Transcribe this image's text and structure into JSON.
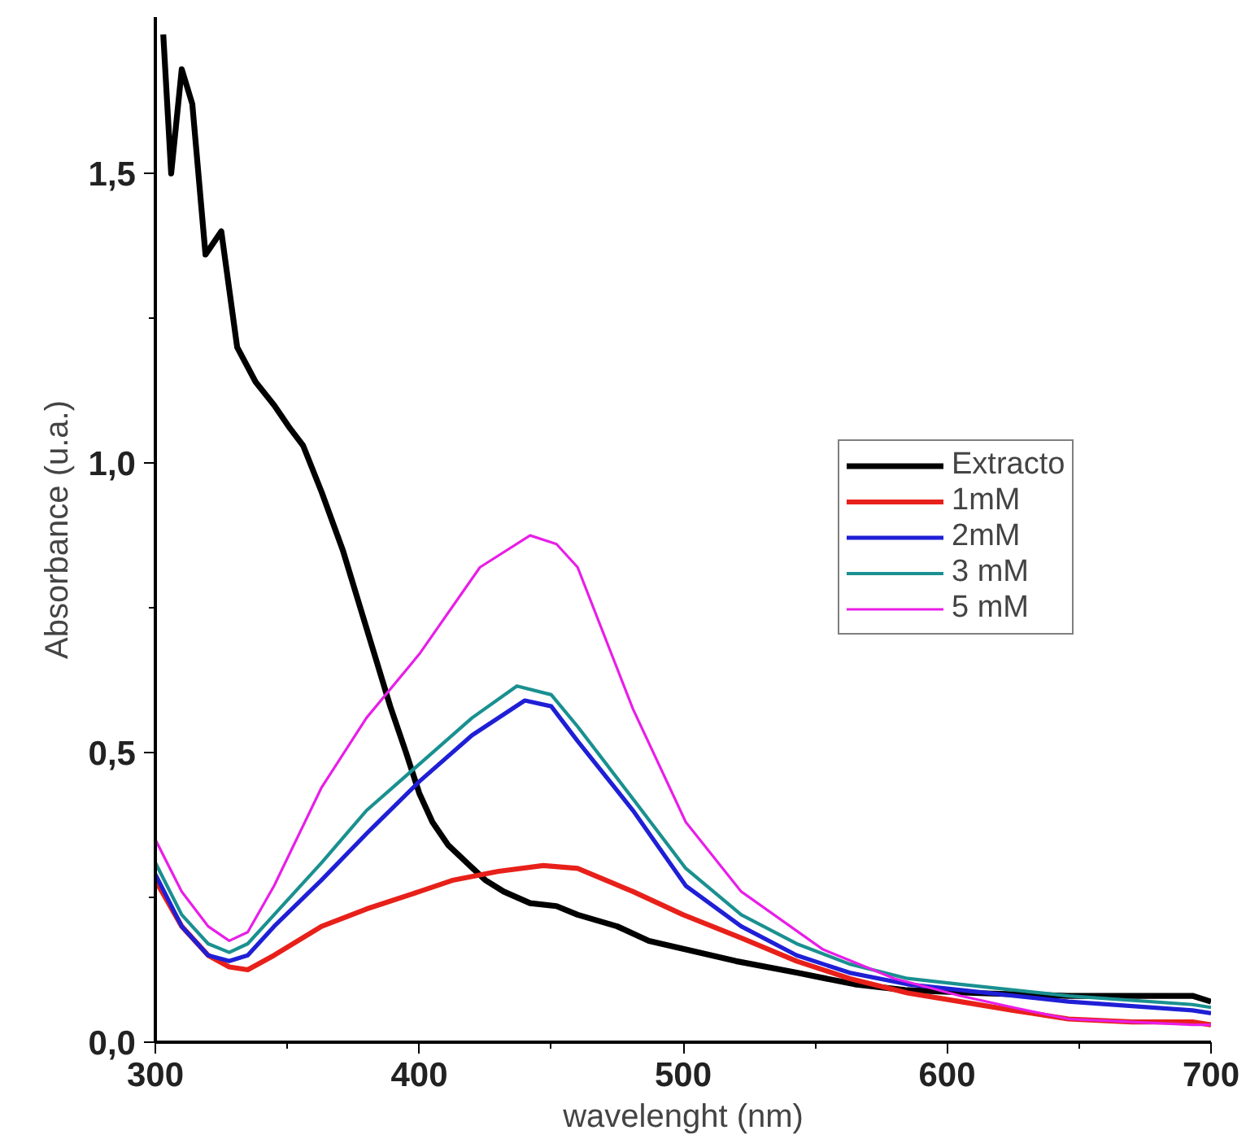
{
  "chart_data": {
    "type": "line",
    "xlabel": "wavelenght (nm)",
    "ylabel": "Absorbance (u.a.)",
    "xlim": [
      300,
      700
    ],
    "ylim": [
      0,
      1.77
    ],
    "xticks": [
      300,
      {
        "value": 350,
        "label": null
      },
      400,
      {
        "value": 450,
        "label": null
      },
      500,
      {
        "value": 550,
        "label": null
      },
      600,
      {
        "value": 650,
        "label": null
      },
      700
    ],
    "yticks": [
      {
        "value": 0,
        "label": "0,0"
      },
      {
        "value": 0.25,
        "label": null
      },
      {
        "value": 0.5,
        "label": "0,5"
      },
      {
        "value": 0.75,
        "label": null
      },
      {
        "value": 1.0,
        "label": "1,0"
      },
      {
        "value": 1.25,
        "label": null
      },
      {
        "value": 1.5,
        "label": "1,5"
      }
    ],
    "grid": false,
    "legend": "right",
    "marker": "none",
    "line_style": "solid",
    "series": [
      {
        "name": "Extracto",
        "color": "#000000",
        "x": [
          303,
          306,
          310,
          314,
          319,
          325,
          331,
          338,
          345,
          351,
          356,
          363,
          371,
          377,
          383,
          389,
          395,
          400,
          405,
          411,
          418,
          425,
          432,
          442,
          452,
          460,
          475,
          487,
          501,
          520,
          543,
          565,
          584,
          610,
          646,
          670,
          693,
          700
        ],
        "values": [
          1.74,
          1.5,
          1.68,
          1.62,
          1.36,
          1.4,
          1.2,
          1.14,
          1.1,
          1.06,
          1.03,
          0.95,
          0.85,
          0.76,
          0.67,
          0.58,
          0.5,
          0.43,
          0.38,
          0.34,
          0.31,
          0.28,
          0.26,
          0.24,
          0.235,
          0.22,
          0.2,
          0.175,
          0.16,
          0.14,
          0.12,
          0.1,
          0.09,
          0.085,
          0.08,
          0.08,
          0.08,
          0.07
        ]
      },
      {
        "name": "1mM",
        "color": "#e8201a",
        "x": [
          300,
          310,
          320,
          328,
          335,
          345,
          363,
          380,
          400,
          413,
          430,
          447,
          460,
          481,
          500,
          522,
          543,
          563,
          585,
          605,
          625,
          646,
          670,
          693,
          700
        ],
        "values": [
          0.28,
          0.2,
          0.15,
          0.13,
          0.125,
          0.15,
          0.2,
          0.23,
          0.26,
          0.28,
          0.295,
          0.305,
          0.3,
          0.26,
          0.22,
          0.18,
          0.14,
          0.11,
          0.085,
          0.07,
          0.055,
          0.04,
          0.035,
          0.035,
          0.03
        ]
      },
      {
        "name": "2mM",
        "color": "#1f1fd6",
        "x": [
          300,
          310,
          320,
          328,
          335,
          345,
          363,
          380,
          400,
          420,
          440,
          450,
          460,
          481,
          501,
          522,
          543,
          563,
          585,
          605,
          646,
          693,
          700
        ],
        "values": [
          0.29,
          0.2,
          0.15,
          0.14,
          0.15,
          0.2,
          0.28,
          0.36,
          0.45,
          0.53,
          0.59,
          0.58,
          0.52,
          0.4,
          0.27,
          0.2,
          0.15,
          0.12,
          0.1,
          0.09,
          0.07,
          0.055,
          0.05
        ]
      },
      {
        "name": "3 mM",
        "color": "#1a9090",
        "x": [
          300,
          310,
          320,
          328,
          335,
          345,
          363,
          380,
          400,
          420,
          437,
          450,
          460,
          481,
          501,
          522,
          543,
          563,
          585,
          605,
          646,
          693,
          700
        ],
        "values": [
          0.31,
          0.22,
          0.17,
          0.155,
          0.17,
          0.22,
          0.31,
          0.4,
          0.48,
          0.56,
          0.615,
          0.6,
          0.545,
          0.42,
          0.3,
          0.22,
          0.17,
          0.135,
          0.11,
          0.1,
          0.08,
          0.065,
          0.06
        ]
      },
      {
        "name": "5 mM",
        "color": "#e81ee8",
        "x": [
          300,
          310,
          320,
          328,
          335,
          345,
          363,
          380,
          400,
          423,
          442,
          452,
          460,
          481,
          501,
          522,
          553,
          580,
          605,
          625,
          646,
          670,
          693,
          700
        ],
        "values": [
          0.35,
          0.26,
          0.2,
          0.175,
          0.19,
          0.27,
          0.44,
          0.56,
          0.67,
          0.82,
          0.875,
          0.86,
          0.82,
          0.575,
          0.38,
          0.26,
          0.16,
          0.11,
          0.08,
          0.06,
          0.04,
          0.035,
          0.03,
          0.03
        ]
      }
    ]
  }
}
